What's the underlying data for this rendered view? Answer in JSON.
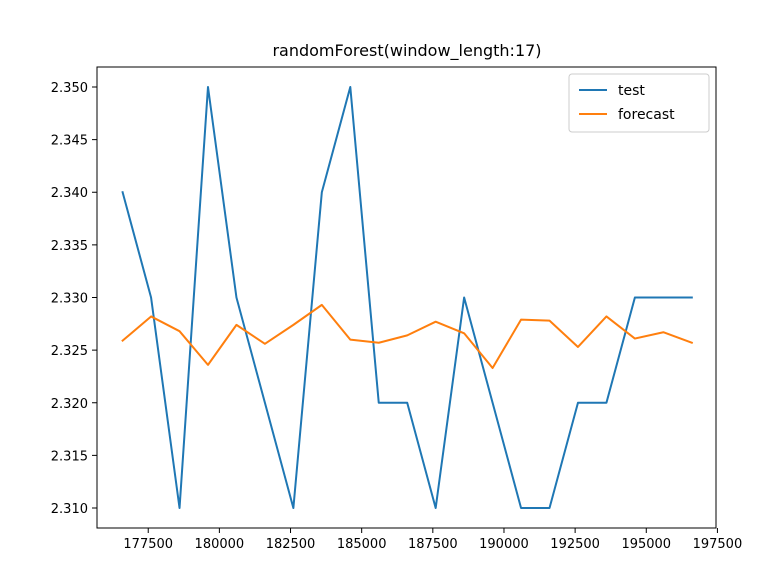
{
  "chart_data": {
    "type": "line",
    "title": "randomForest(window_length:17)",
    "xlabel": "",
    "ylabel": "",
    "xlim": [
      175700,
      197450
    ],
    "ylim": [
      2.3081,
      2.3519
    ],
    "x_ticks": [
      177500,
      180000,
      182500,
      185000,
      187500,
      190000,
      192500,
      195000,
      197500
    ],
    "y_ticks": [
      2.31,
      2.315,
      2.32,
      2.325,
      2.33,
      2.335,
      2.34,
      2.345,
      2.35
    ],
    "legend": "top-right",
    "grid": false,
    "x": [
      176600,
      177600,
      178600,
      179600,
      180600,
      181600,
      182600,
      183600,
      184600,
      185600,
      186600,
      187600,
      188600,
      189600,
      190600,
      191600,
      192600,
      193600,
      194600,
      195600,
      196600
    ],
    "series": [
      {
        "name": "test",
        "color": "#1f77b4",
        "values": [
          2.34,
          2.33,
          2.31,
          2.35,
          2.33,
          2.32,
          2.31,
          2.34,
          2.35,
          2.32,
          2.32,
          2.31,
          2.33,
          2.32,
          2.31,
          2.31,
          2.32,
          2.32,
          2.33,
          2.33,
          2.33
        ]
      },
      {
        "name": "forecast",
        "color": "#ff7f0e",
        "values": [
          2.3259,
          2.3282,
          2.3268,
          2.3236,
          2.3274,
          2.3256,
          2.3274,
          2.3293,
          2.326,
          2.3257,
          2.3264,
          2.3277,
          2.3266,
          2.3233,
          2.3279,
          2.3278,
          2.3253,
          2.3282,
          2.3261,
          2.3267,
          2.3257
        ]
      }
    ]
  }
}
